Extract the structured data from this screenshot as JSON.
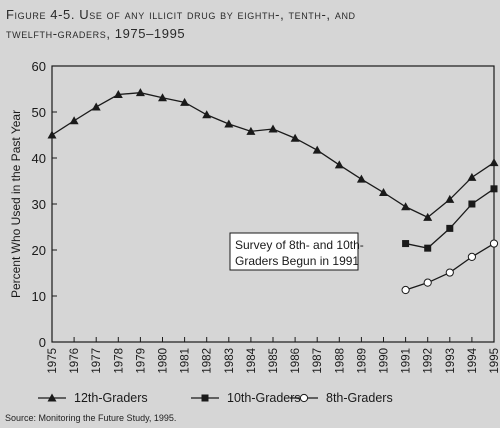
{
  "figure": {
    "title_line1": "Figure 4-5. Use of any illicit drug by eighth-, tenth-, and",
    "title_line2": "twelfth-graders, 1975–1995",
    "source": "Source: Monitoring the Future Study, 1995."
  },
  "chart_data": {
    "type": "line",
    "ylabel": "Percent Who Used in the Past Year",
    "xlabel": "",
    "ylim": [
      0,
      60
    ],
    "yticks": [
      0,
      10,
      20,
      30,
      40,
      50,
      60
    ],
    "x": [
      1975,
      1976,
      1977,
      1978,
      1979,
      1980,
      1981,
      1982,
      1983,
      1984,
      1985,
      1986,
      1987,
      1988,
      1989,
      1990,
      1991,
      1992,
      1993,
      1994,
      1995
    ],
    "grid": false,
    "legend_position": "bottom",
    "annotation": {
      "line1": "Survey of 8th- and 10th-",
      "line2": "Graders Begun in 1991"
    },
    "series": [
      {
        "name": "12th-Graders",
        "marker": "triangle",
        "x": [
          1975,
          1976,
          1977,
          1978,
          1979,
          1980,
          1981,
          1982,
          1983,
          1984,
          1985,
          1986,
          1987,
          1988,
          1989,
          1990,
          1991,
          1992,
          1993,
          1994,
          1995
        ],
        "values": [
          45.0,
          48.1,
          51.1,
          53.8,
          54.2,
          53.1,
          52.1,
          49.4,
          47.4,
          45.8,
          46.3,
          44.3,
          41.7,
          38.5,
          35.4,
          32.5,
          29.4,
          27.1,
          31.0,
          35.8,
          39.0
        ]
      },
      {
        "name": "10th-Graders",
        "marker": "square",
        "x": [
          1991,
          1992,
          1993,
          1994,
          1995
        ],
        "values": [
          21.4,
          20.4,
          24.7,
          30.0,
          33.3
        ]
      },
      {
        "name": "8th-Graders",
        "marker": "circle",
        "x": [
          1991,
          1992,
          1993,
          1994,
          1995
        ],
        "values": [
          11.3,
          12.9,
          15.1,
          18.5,
          21.4
        ]
      }
    ]
  },
  "colors": {
    "line": "#1a1a1a",
    "background": "#d6d6d6",
    "annotation_bg": "#ffffff"
  }
}
